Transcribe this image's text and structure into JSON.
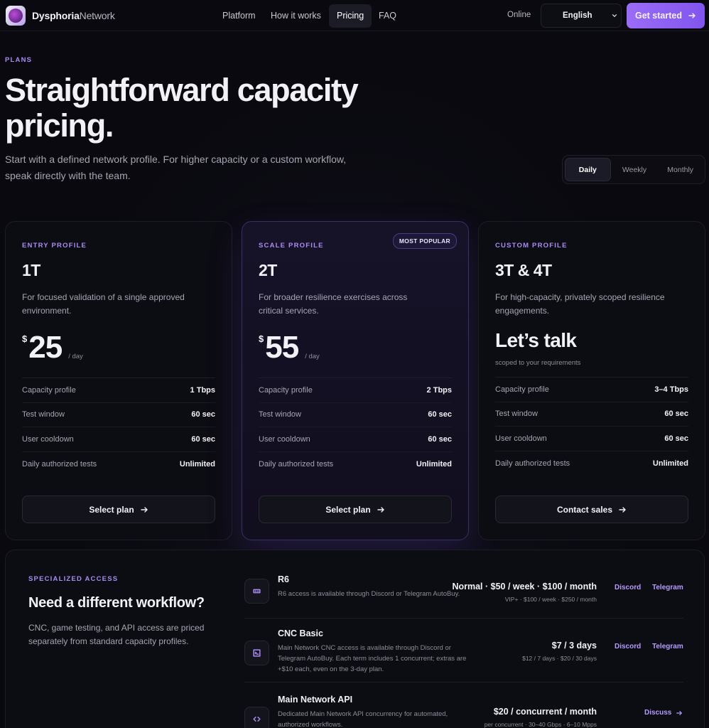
{
  "nav": {
    "brand": "Dysphoria",
    "brand_suffix": "Network",
    "links": [
      "Platform",
      "How it works",
      "Pricing",
      "FAQ"
    ],
    "status": "Online",
    "language": "English",
    "cta": "Get started"
  },
  "hero": {
    "eyebrow": "PLANS",
    "title": "Straightforward capacity pricing.",
    "subtitle": "Start with a defined network profile. For higher capacity or a custom workflow, speak directly with the team.",
    "periods": [
      "Daily",
      "Weekly",
      "Monthly"
    ]
  },
  "plans": [
    {
      "label": "ENTRY PROFILE",
      "name": "1T",
      "description": "For focused validation of a single approved environment.",
      "currency": "$",
      "amount": "25",
      "unit": "/ day",
      "rows": [
        {
          "label": "Capacity profile",
          "value": "1 Tbps"
        },
        {
          "label": "Test window",
          "value": "60 sec"
        },
        {
          "label": "User cooldown",
          "value": "60 sec"
        },
        {
          "label": "Daily authorized tests",
          "value": "Unlimited"
        }
      ],
      "button": "Select plan"
    },
    {
      "label": "SCALE PROFILE",
      "badge": "MOST POPULAR",
      "name": "2T",
      "description": "For broader resilience exercises across critical services.",
      "currency": "$",
      "amount": "55",
      "unit": "/ day",
      "rows": [
        {
          "label": "Capacity profile",
          "value": "2 Tbps"
        },
        {
          "label": "Test window",
          "value": "60 sec"
        },
        {
          "label": "User cooldown",
          "value": "60 sec"
        },
        {
          "label": "Daily authorized tests",
          "value": "Unlimited"
        }
      ],
      "button": "Select plan"
    },
    {
      "label": "CUSTOM PROFILE",
      "name": "3T & 4T",
      "description": "For high-capacity, privately scoped resilience engagements.",
      "price_text": "Let’s talk",
      "price_note": "scoped to your requirements",
      "rows": [
        {
          "label": "Capacity profile",
          "value": "3–4 Tbps"
        },
        {
          "label": "Test window",
          "value": "60 sec"
        },
        {
          "label": "User cooldown",
          "value": "60 sec"
        },
        {
          "label": "Daily authorized tests",
          "value": "Unlimited"
        }
      ],
      "button": "Contact sales"
    }
  ],
  "specialized": {
    "eyebrow": "SPECIALIZED ACCESS",
    "title": "Need a different workflow?",
    "description": "CNC, game testing, and API access are priced separately from standard capacity profiles.",
    "items": [
      {
        "title": "R6",
        "description": "R6 access is available through Discord or Telegram AutoBuy.",
        "price": "Normal · $50 / week · $100 / month",
        "price_note": "VIP+ · $100 / week · $250 / month",
        "links": [
          "Discord",
          "Telegram"
        ]
      },
      {
        "title": "CNC Basic",
        "description": "Main Network CNC access is available through Discord or Telegram AutoBuy. Each term includes 1 concurrent; extras are +$10 each, even on the 3-day plan.",
        "price": "$7 / 3 days",
        "price_note": "$12 / 7 days · $20 / 30 days",
        "links": [
          "Discord",
          "Telegram"
        ]
      },
      {
        "title": "Main Network API",
        "description": "Dedicated Main Network API concurrency for automated, authorized workflows.",
        "price": "$20 / concurrent / month",
        "price_note": "per concurrent · 30–40 Gbps · 6–10 Mpps",
        "links": [
          "Discuss"
        ]
      }
    ]
  }
}
